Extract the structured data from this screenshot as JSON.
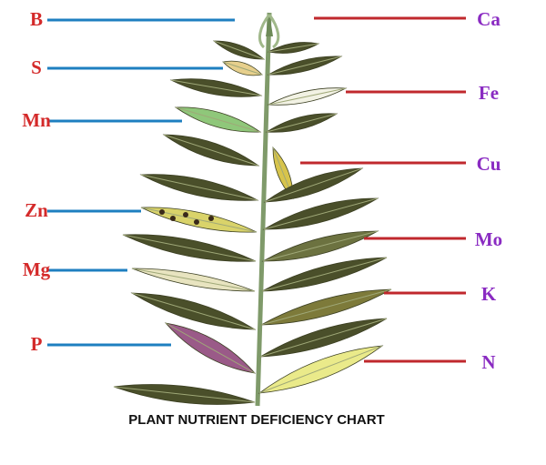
{
  "title": "PLANT NUTRIENT DEFICIENCY CHART",
  "left_labels": [
    "B",
    "S",
    "Mn",
    "Zn",
    "Mg",
    "P"
  ],
  "right_labels": [
    "Ca",
    "Fe",
    "Cu",
    "Mo",
    "K",
    "N"
  ]
}
